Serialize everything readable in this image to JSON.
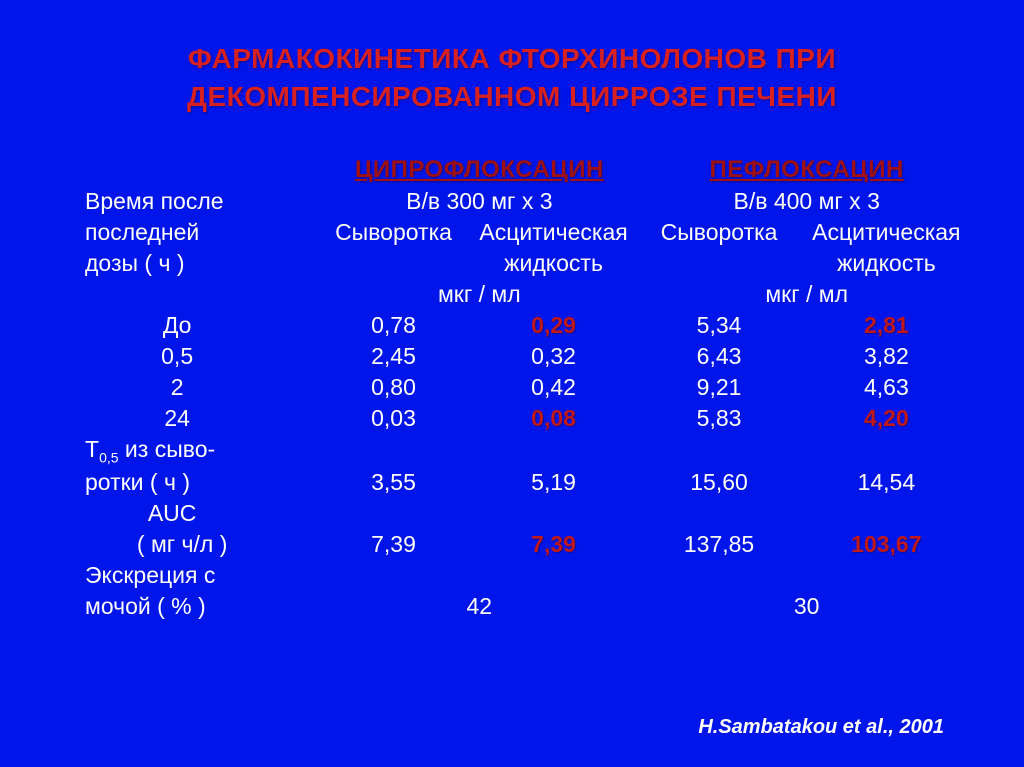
{
  "colors": {
    "background": "#0015e9",
    "title": "#d92020",
    "drugname": "#a01010",
    "highlight": "#c01818",
    "body": "#ffffff"
  },
  "typography": {
    "title_fontsize": 28,
    "body_fontsize": 23,
    "drugname_fontsize": 24,
    "citation_fontsize": 20
  },
  "title": {
    "line1": "ФАРМАКОКИНЕТИКА ФТОРХИНОЛОНОВ ПРИ",
    "line2": "ДЕКОМПЕНСИРОВАННОМ ЦИРРОЗЕ ПЕЧЕНИ"
  },
  "header": {
    "drug1": "ЦИПРОФЛОКСАЦИН",
    "drug2": "ПЕФЛОКСАЦИН",
    "rowlabel_l1": "Время после",
    "rowlabel_l2": "последней",
    "rowlabel_l3": "дозы ( ч )",
    "dose1": "В/в  300 мг х 3",
    "dose2": "В/в  400 мг х 3",
    "serum": "Сыворотка",
    "ascitic_l1": "Асцитическая",
    "ascitic_l2": "жидкость",
    "unit": "мкг / мл"
  },
  "rows": {
    "r0": {
      "label": "До",
      "cs": "0,78",
      "ca": "0,29",
      "ps": "5,34",
      "pa": "2,81"
    },
    "r1": {
      "label": "0,5",
      "cs": "2,45",
      "ca": "0,32",
      "ps": "6,43",
      "pa": "3,82"
    },
    "r2": {
      "label": "2",
      "cs": "0,80",
      "ca": "0,42",
      "ps": "9,21",
      "pa": "4,63"
    },
    "r3": {
      "label": "24",
      "cs": "0,03",
      "ca": "0,08",
      "ps": "5,83",
      "pa": "4,20"
    },
    "t05_l1": "Т",
    "t05_sub": "0,5",
    "t05_l1b": " из сыво-",
    "t05_l2": "ротки ( ч )",
    "t05": {
      "cs": "3,55",
      "ca": "5,19",
      "ps": "15,60",
      "pa": "14,54"
    },
    "auc_l1": "AUC",
    "auc_l2": "( мг ч/л )",
    "auc": {
      "cs": "7,39",
      "ca": "7,39",
      "ps": "137,85",
      "pa": "103,67"
    },
    "excr_l1": "Экскреция с",
    "excr_l2": "мочой ( % )",
    "excr": {
      "c": "42",
      "p": "30"
    }
  },
  "highlight": {
    "r0_ca": true,
    "r0_pa": true,
    "r3_ca": true,
    "r3_pa": true,
    "auc_ca": true,
    "auc_pa": true
  },
  "citation": "H.Sambatakou et al., 2001"
}
